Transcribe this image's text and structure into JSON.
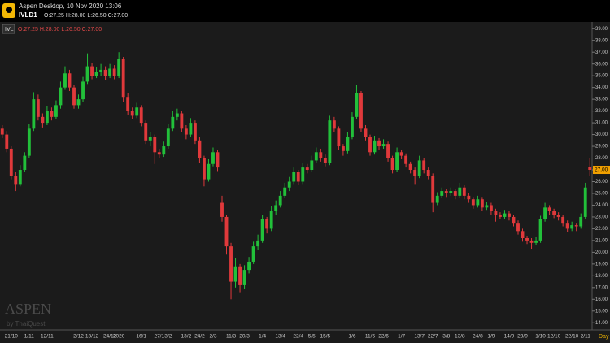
{
  "header": {
    "app_title": "Aspen Desktop, 10 Nov 2020 13:06",
    "symbol": "IVLD1",
    "quote": "O:27.25 H:28.00 L:26.50 C:27.00"
  },
  "chart_data": {
    "type": "candlestick",
    "symbol_label": "IVL",
    "quote_label": "O:27.25 H:28.00 L:26.50 C:27.00",
    "watermark": "ASPEN",
    "watermark_sub": "by ThaiQuest",
    "period": "Day",
    "up_color": "#22c03a",
    "down_color": "#e0393b",
    "last_price": {
      "value": 27,
      "label": "27.00"
    },
    "categories": [
      null,
      null,
      "21/10",
      null,
      null,
      null,
      "1/11",
      null,
      null,
      null,
      "12/11",
      null,
      null,
      null,
      null,
      null,
      null,
      "2/12",
      null,
      null,
      "13/12",
      null,
      null,
      null,
      "24/12",
      null,
      "2020",
      null,
      null,
      null,
      null,
      "16/1",
      null,
      null,
      null,
      "27/1",
      null,
      "3/2",
      null,
      null,
      null,
      "13/2",
      null,
      null,
      "24/2",
      null,
      null,
      "2/3",
      null,
      null,
      null,
      "11/3",
      null,
      null,
      "20/3",
      null,
      null,
      null,
      "1/4",
      null,
      null,
      null,
      "13/4",
      null,
      null,
      null,
      "22/4",
      null,
      null,
      "5/5",
      null,
      null,
      "15/5",
      null,
      null,
      null,
      null,
      null,
      "1/6",
      null,
      null,
      null,
      "11/6",
      null,
      null,
      "22/6",
      null,
      null,
      null,
      "1/7",
      null,
      null,
      null,
      "13/7",
      null,
      null,
      "22/7",
      null,
      null,
      "3/8",
      null,
      null,
      "13/8",
      null,
      null,
      null,
      "24/8",
      null,
      null,
      "1/9",
      null,
      null,
      null,
      "14/9",
      null,
      null,
      "23/9",
      null,
      null,
      null,
      "1/10",
      null,
      null,
      "12/10",
      null,
      null,
      null,
      "22/10",
      null,
      null,
      "2/11",
      null
    ],
    "open": [
      30.5,
      30.0,
      28.8,
      26.5,
      25.8,
      27.0,
      28.2,
      30.5,
      33.0,
      31.5,
      31.0,
      32.0,
      31.5,
      32.5,
      34.0,
      35.2,
      34.0,
      32.5,
      33.0,
      34.5,
      35.8,
      35.0,
      35.3,
      35.5,
      35.0,
      35.6,
      35.0,
      36.4,
      33.2,
      32.0,
      31.6,
      32.3,
      31.0,
      29.5,
      29.8,
      28.5,
      28.3,
      29.0,
      30.5,
      31.5,
      31.8,
      30.5,
      30.0,
      31.0,
      29.5,
      28.0,
      26.2,
      27.5,
      28.5,
      24.2,
      23.0,
      20.5,
      17.5,
      18.8,
      17.2,
      18.5,
      19.2,
      20.5,
      21.0,
      22.8,
      22.0,
      23.5,
      24.0,
      24.8,
      25.5,
      26.0,
      26.8,
      26.0,
      27.2,
      27.0,
      27.8,
      28.5,
      28.0,
      27.6,
      31.2,
      30.5,
      29.0,
      28.6,
      29.8,
      31.5,
      33.5,
      30.5,
      29.8,
      28.5,
      29.5,
      29.0,
      29.2,
      28.0,
      27.0,
      28.5,
      28.2,
      27.5,
      27.0,
      26.5,
      27.8,
      27.0,
      26.5,
      24.2,
      24.8,
      25.2,
      25.0,
      25.2,
      24.8,
      25.5,
      24.8,
      24.5,
      24.0,
      24.5,
      23.8,
      24.0,
      23.5,
      23.2,
      23.0,
      23.3,
      23.0,
      22.5,
      21.8,
      21.2,
      21.0,
      20.8,
      21.0,
      22.8,
      23.8,
      23.5,
      23.2,
      23.0,
      22.5,
      22.0,
      22.3,
      22.2,
      23.0,
      27.25
    ],
    "high": [
      30.8,
      30.3,
      29.0,
      26.8,
      27.4,
      28.5,
      30.9,
      33.6,
      33.4,
      31.8,
      32.4,
      32.3,
      32.9,
      34.5,
      35.8,
      35.5,
      34.2,
      33.4,
      34.9,
      36.9,
      36.1,
      35.7,
      36.0,
      35.8,
      36.0,
      35.9,
      37.0,
      36.6,
      33.5,
      32.3,
      32.7,
      32.5,
      31.2,
      30.2,
      30.0,
      28.8,
      29.4,
      30.9,
      32.0,
      32.2,
      32.0,
      30.8,
      31.4,
      31.2,
      29.8,
      28.2,
      27.9,
      28.9,
      28.7,
      24.8,
      23.2,
      20.8,
      19.5,
      19.0,
      18.9,
      19.6,
      20.9,
      21.5,
      23.2,
      23.0,
      23.9,
      24.4,
      25.2,
      25.9,
      26.4,
      27.2,
      27.0,
      27.6,
      27.5,
      28.2,
      28.9,
      28.8,
      28.3,
      31.6,
      31.5,
      30.7,
      29.2,
      30.2,
      31.9,
      34.2,
      33.7,
      30.8,
      30.0,
      29.9,
      29.7,
      29.6,
      29.4,
      28.2,
      28.9,
      28.7,
      28.4,
      27.7,
      27.2,
      28.2,
      28.0,
      27.2,
      26.7,
      25.1,
      25.5,
      25.4,
      25.5,
      25.4,
      25.9,
      25.7,
      25.0,
      24.7,
      24.8,
      24.7,
      24.3,
      24.2,
      23.7,
      23.4,
      23.6,
      23.5,
      23.2,
      22.7,
      22.0,
      21.4,
      21.2,
      21.3,
      23.1,
      24.2,
      24.0,
      23.7,
      23.4,
      23.2,
      22.7,
      22.6,
      22.5,
      23.3,
      25.9,
      28.0
    ],
    "low": [
      29.7,
      28.5,
      26.2,
      25.2,
      25.6,
      26.8,
      28.0,
      30.3,
      31.2,
      30.6,
      30.8,
      31.2,
      31.3,
      32.2,
      33.8,
      33.7,
      32.2,
      32.2,
      32.8,
      34.3,
      34.7,
      34.8,
      35.0,
      34.6,
      34.8,
      34.7,
      34.8,
      32.8,
      31.7,
      31.3,
      31.4,
      30.7,
      29.2,
      29.0,
      27.5,
      28.0,
      28.1,
      28.8,
      30.3,
      31.2,
      30.2,
      29.6,
      29.8,
      29.2,
      27.6,
      25.6,
      26.0,
      27.3,
      26.9,
      22.6,
      19.8,
      16.0,
      17.0,
      16.6,
      16.9,
      18.2,
      19.0,
      20.2,
      20.8,
      21.6,
      21.8,
      23.2,
      23.8,
      24.6,
      25.2,
      25.8,
      25.7,
      25.8,
      26.7,
      26.8,
      27.6,
      27.7,
      27.3,
      27.4,
      30.2,
      28.7,
      28.2,
      28.4,
      29.6,
      31.3,
      30.2,
      29.5,
      28.2,
      28.3,
      28.7,
      28.8,
      27.7,
      26.7,
      26.8,
      27.9,
      27.2,
      26.7,
      25.8,
      26.3,
      26.7,
      26.2,
      23.4,
      24.0,
      24.6,
      24.7,
      24.8,
      24.5,
      24.6,
      24.5,
      24.2,
      23.7,
      23.8,
      23.5,
      23.6,
      23.2,
      22.6,
      22.8,
      22.8,
      22.7,
      22.2,
      21.5,
      20.9,
      20.7,
      20.3,
      20.6,
      20.8,
      22.6,
      23.2,
      22.9,
      22.7,
      22.2,
      21.7,
      21.8,
      21.8,
      22.0,
      22.8,
      26.5
    ],
    "close": [
      30.0,
      28.8,
      26.5,
      25.8,
      27.0,
      28.2,
      30.5,
      33.0,
      31.5,
      31.0,
      32.0,
      31.5,
      32.5,
      34.0,
      35.2,
      34.0,
      32.5,
      33.0,
      34.5,
      35.8,
      35.0,
      35.3,
      35.5,
      35.0,
      35.6,
      35.0,
      36.4,
      33.2,
      32.0,
      31.6,
      32.3,
      31.0,
      29.5,
      29.8,
      28.5,
      28.3,
      29.0,
      30.5,
      31.5,
      31.8,
      30.5,
      30.0,
      31.0,
      29.5,
      28.0,
      26.2,
      27.5,
      28.5,
      27.2,
      23.0,
      20.5,
      17.5,
      18.8,
      17.2,
      18.5,
      19.2,
      20.5,
      21.0,
      22.8,
      22.0,
      23.5,
      24.0,
      24.8,
      25.5,
      26.0,
      26.8,
      26.0,
      27.2,
      27.0,
      27.8,
      28.5,
      28.0,
      27.6,
      31.2,
      30.5,
      29.0,
      28.6,
      29.8,
      31.5,
      33.5,
      30.5,
      29.8,
      28.5,
      29.5,
      29.0,
      29.2,
      28.0,
      27.0,
      28.5,
      28.2,
      27.5,
      27.0,
      26.5,
      27.8,
      27.0,
      26.5,
      24.2,
      24.8,
      25.2,
      25.0,
      25.2,
      24.8,
      25.5,
      24.8,
      24.5,
      24.0,
      24.5,
      23.8,
      24.0,
      23.5,
      23.2,
      23.0,
      23.3,
      23.0,
      22.5,
      21.8,
      21.2,
      21.0,
      20.8,
      21.0,
      22.8,
      23.8,
      23.5,
      23.2,
      23.0,
      22.5,
      22.0,
      22.3,
      22.2,
      23.0,
      25.5,
      27.0
    ],
    "ylim": [
      13.5,
      39.5
    ],
    "yticks": [
      {
        "value": 14,
        "label": "14.00"
      },
      {
        "value": 15,
        "label": "15.00"
      },
      {
        "value": 16,
        "label": "16.00"
      },
      {
        "value": 17,
        "label": "17.00"
      },
      {
        "value": 18,
        "label": "18.00"
      },
      {
        "value": 19,
        "label": "19.00"
      },
      {
        "value": 20,
        "label": "20.00"
      },
      {
        "value": 21,
        "label": "21.00"
      },
      {
        "value": 22,
        "label": "22.00"
      },
      {
        "value": 23,
        "label": "23.00"
      },
      {
        "value": 24,
        "label": "24.00"
      },
      {
        "value": 25,
        "label": "25.00"
      },
      {
        "value": 26,
        "label": "26.00"
      },
      {
        "value": 27,
        "label": "27.00"
      },
      {
        "value": 28,
        "label": "28.00"
      },
      {
        "value": 29,
        "label": "29.00"
      },
      {
        "value": 30,
        "label": "30.00"
      },
      {
        "value": 31,
        "label": "31.00"
      },
      {
        "value": 32,
        "label": "32.00"
      },
      {
        "value": 33,
        "label": "33.00"
      },
      {
        "value": 34,
        "label": "34.00"
      },
      {
        "value": 35,
        "label": "35.00"
      },
      {
        "value": 36,
        "label": "36.00"
      },
      {
        "value": 37,
        "label": "37.00"
      },
      {
        "value": 38,
        "label": "38.00"
      },
      {
        "value": 39,
        "label": "39.00"
      }
    ]
  }
}
